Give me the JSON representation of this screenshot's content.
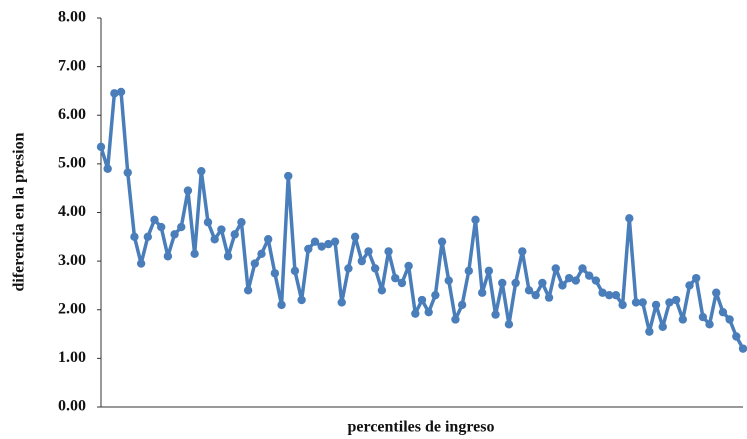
{
  "chart_data": {
    "type": "line",
    "x_label": "percentiles de ingreso",
    "y_label": "diferencia  en la presion",
    "color": "#4a7ebb",
    "values": [
      5.35,
      4.9,
      6.45,
      6.48,
      4.82,
      3.5,
      2.95,
      3.5,
      3.85,
      3.7,
      3.1,
      3.55,
      3.7,
      4.45,
      3.15,
      4.85,
      3.8,
      3.45,
      3.65,
      3.1,
      3.55,
      3.8,
      2.4,
      2.95,
      3.15,
      3.45,
      2.75,
      2.1,
      4.75,
      2.8,
      2.2,
      3.25,
      3.4,
      3.3,
      3.35,
      3.4,
      2.15,
      2.85,
      3.5,
      3.0,
      3.2,
      2.85,
      2.4,
      3.2,
      2.65,
      2.55,
      2.9,
      1.92,
      2.2,
      1.95,
      2.3,
      3.4,
      2.6,
      1.8,
      2.1,
      2.8,
      3.85,
      2.35,
      2.8,
      1.9,
      2.55,
      1.7,
      2.55,
      3.2,
      2.4,
      2.3,
      2.55,
      2.25,
      2.85,
      2.5,
      2.65,
      2.6,
      2.85,
      2.7,
      2.6,
      2.35,
      2.3,
      2.3,
      2.1,
      3.88,
      2.15,
      2.15,
      1.55,
      2.1,
      1.65,
      2.15,
      2.2,
      1.8,
      2.5,
      2.65,
      1.85,
      1.7,
      2.35,
      1.95,
      1.8,
      1.45,
      1.2
    ],
    "ylim": [
      0,
      8
    ],
    "yticks": [
      {
        "value": 0,
        "label": "0.00"
      },
      {
        "value": 1,
        "label": "1.00"
      },
      {
        "value": 2,
        "label": "2.00"
      },
      {
        "value": 3,
        "label": "3.00"
      },
      {
        "value": 4,
        "label": "4.00"
      },
      {
        "value": 5,
        "label": "5.00"
      },
      {
        "value": 6,
        "label": "6.00"
      },
      {
        "value": 7,
        "label": "7.00"
      },
      {
        "value": 8,
        "label": "8.00"
      }
    ],
    "grid": false
  }
}
